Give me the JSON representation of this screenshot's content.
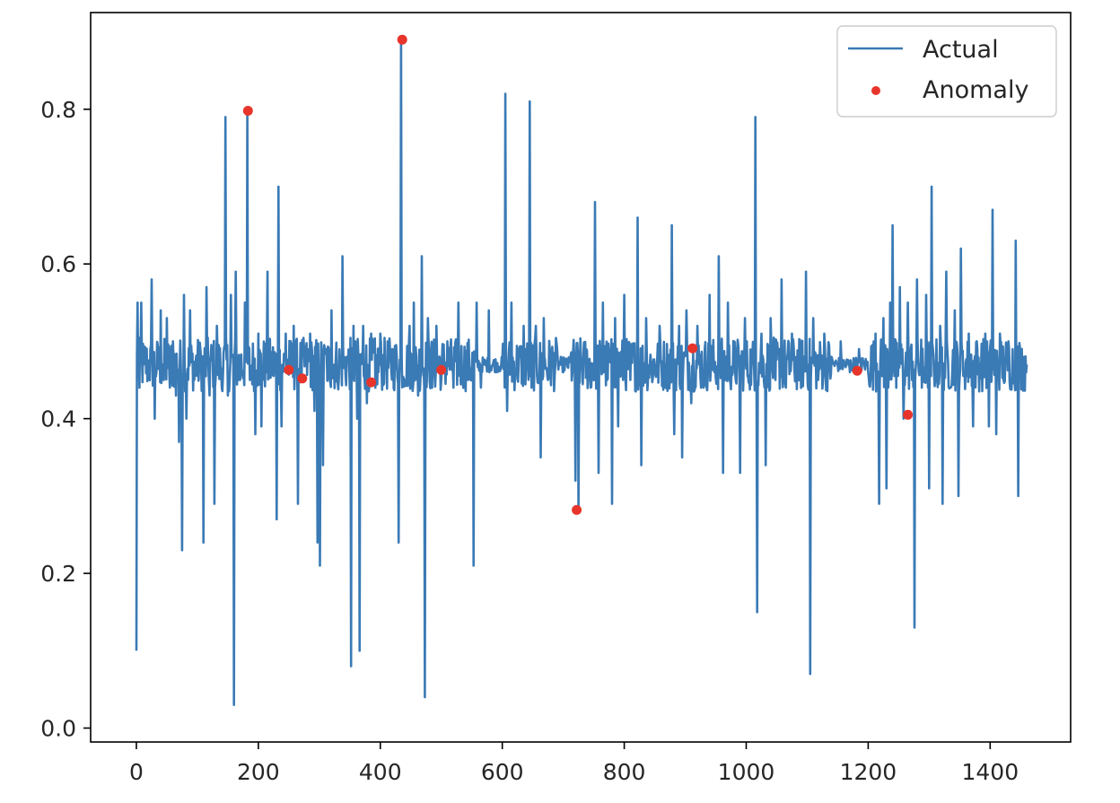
{
  "chart_data": {
    "type": "line",
    "title": "",
    "xlabel": "",
    "ylabel": "",
    "xlim": [
      -75,
      1532
    ],
    "ylim": [
      -0.018,
      0.925
    ],
    "xticks": [
      0,
      200,
      400,
      600,
      800,
      1000,
      1200,
      1400
    ],
    "yticks": [
      0.0,
      0.2,
      0.4,
      0.6,
      0.8
    ],
    "xtick_labels": [
      "0",
      "200",
      "400",
      "600",
      "800",
      "1000",
      "1200",
      "1400"
    ],
    "ytick_labels": [
      "0.0",
      "0.2",
      "0.4",
      "0.6",
      "0.8"
    ],
    "grid": false,
    "legend_position": "top-right",
    "colors": {
      "actual": "#3a7ab5",
      "anomaly": "#e8352b",
      "axis": "#000000"
    },
    "series": [
      {
        "name": "Actual",
        "kind": "line",
        "x_start": 0,
        "x_step": 1,
        "baseline": 0.47,
        "spikes": [
          [
            0,
            0.1
          ],
          [
            2,
            0.55
          ],
          [
            5,
            0.44
          ],
          [
            8,
            0.55
          ],
          [
            12,
            0.47
          ],
          [
            20,
            0.46
          ],
          [
            25,
            0.58
          ],
          [
            30,
            0.4
          ],
          [
            40,
            0.54
          ],
          [
            45,
            0.45
          ],
          [
            50,
            0.53
          ],
          [
            55,
            0.44
          ],
          [
            60,
            0.5
          ],
          [
            65,
            0.43
          ],
          [
            70,
            0.37
          ],
          [
            75,
            0.23
          ],
          [
            78,
            0.56
          ],
          [
            82,
            0.4
          ],
          [
            88,
            0.54
          ],
          [
            95,
            0.45
          ],
          [
            105,
            0.49
          ],
          [
            110,
            0.24
          ],
          [
            115,
            0.57
          ],
          [
            120,
            0.43
          ],
          [
            128,
            0.29
          ],
          [
            132,
            0.52
          ],
          [
            140,
            0.44
          ],
          [
            146,
            0.79
          ],
          [
            150,
            0.43
          ],
          [
            155,
            0.56
          ],
          [
            160,
            0.03
          ],
          [
            163,
            0.59
          ],
          [
            170,
            0.45
          ],
          [
            178,
            0.55
          ],
          [
            182,
            0.8
          ],
          [
            186,
            0.45
          ],
          [
            195,
            0.38
          ],
          [
            200,
            0.51
          ],
          [
            205,
            0.39
          ],
          [
            215,
            0.59
          ],
          [
            222,
            0.46
          ],
          [
            230,
            0.27
          ],
          [
            233,
            0.7
          ],
          [
            238,
            0.39
          ],
          [
            245,
            0.51
          ],
          [
            252,
            0.46
          ],
          [
            258,
            0.52
          ],
          [
            265,
            0.29
          ],
          [
            270,
            0.45
          ],
          [
            278,
            0.49
          ],
          [
            285,
            0.51
          ],
          [
            292,
            0.41
          ],
          [
            297,
            0.24
          ],
          [
            301,
            0.21
          ],
          [
            306,
            0.34
          ],
          [
            312,
            0.49
          ],
          [
            320,
            0.54
          ],
          [
            330,
            0.45
          ],
          [
            338,
            0.61
          ],
          [
            345,
            0.48
          ],
          [
            352,
            0.08
          ],
          [
            356,
            0.52
          ],
          [
            362,
            0.4
          ],
          [
            366,
            0.1
          ],
          [
            372,
            0.52
          ],
          [
            378,
            0.42
          ],
          [
            385,
            0.51
          ],
          [
            392,
            0.44
          ],
          [
            400,
            0.51
          ],
          [
            410,
            0.47
          ],
          [
            420,
            0.49
          ],
          [
            430,
            0.24
          ],
          [
            434,
            0.89
          ],
          [
            440,
            0.45
          ],
          [
            448,
            0.52
          ],
          [
            455,
            0.55
          ],
          [
            462,
            0.43
          ],
          [
            468,
            0.61
          ],
          [
            473,
            0.04
          ],
          [
            478,
            0.53
          ],
          [
            485,
            0.44
          ],
          [
            492,
            0.52
          ],
          [
            500,
            0.45
          ],
          [
            510,
            0.5
          ],
          [
            520,
            0.44
          ],
          [
            528,
            0.55
          ],
          [
            535,
            0.46
          ],
          [
            553,
            0.21
          ],
          [
            558,
            0.55
          ],
          [
            565,
            0.44
          ],
          [
            578,
            0.54
          ],
          [
            590,
            0.46
          ],
          [
            605,
            0.82
          ],
          [
            608,
            0.41
          ],
          [
            615,
            0.55
          ],
          [
            622,
            0.46
          ],
          [
            635,
            0.52
          ],
          [
            645,
            0.81
          ],
          [
            648,
            0.44
          ],
          [
            655,
            0.52
          ],
          [
            663,
            0.35
          ],
          [
            668,
            0.53
          ],
          [
            675,
            0.45
          ],
          [
            690,
            0.49
          ],
          [
            700,
            0.46
          ],
          [
            712,
            0.48
          ],
          [
            720,
            0.32
          ],
          [
            725,
            0.28
          ],
          [
            735,
            0.49
          ],
          [
            745,
            0.44
          ],
          [
            752,
            0.68
          ],
          [
            758,
            0.33
          ],
          [
            765,
            0.55
          ],
          [
            772,
            0.45
          ],
          [
            780,
            0.29
          ],
          [
            785,
            0.53
          ],
          [
            790,
            0.39
          ],
          [
            800,
            0.56
          ],
          [
            810,
            0.45
          ],
          [
            822,
            0.66
          ],
          [
            828,
            0.34
          ],
          [
            836,
            0.53
          ],
          [
            845,
            0.46
          ],
          [
            858,
            0.52
          ],
          [
            868,
            0.47
          ],
          [
            878,
            0.65
          ],
          [
            882,
            0.38
          ],
          [
            890,
            0.52
          ],
          [
            895,
            0.35
          ],
          [
            902,
            0.54
          ],
          [
            910,
            0.42
          ],
          [
            920,
            0.52
          ],
          [
            930,
            0.44
          ],
          [
            940,
            0.56
          ],
          [
            948,
            0.46
          ],
          [
            955,
            0.61
          ],
          [
            962,
            0.33
          ],
          [
            970,
            0.55
          ],
          [
            978,
            0.46
          ],
          [
            990,
            0.33
          ],
          [
            998,
            0.53
          ],
          [
            1005,
            0.45
          ],
          [
            1015,
            0.79
          ],
          [
            1018,
            0.15
          ],
          [
            1025,
            0.51
          ],
          [
            1032,
            0.34
          ],
          [
            1040,
            0.53
          ],
          [
            1048,
            0.45
          ],
          [
            1058,
            0.58
          ],
          [
            1065,
            0.44
          ],
          [
            1075,
            0.51
          ],
          [
            1085,
            0.47
          ],
          [
            1098,
            0.59
          ],
          [
            1105,
            0.07
          ],
          [
            1110,
            0.53
          ],
          [
            1118,
            0.45
          ],
          [
            1128,
            0.51
          ],
          [
            1140,
            0.48
          ],
          [
            1155,
            0.5
          ],
          [
            1170,
            0.46
          ],
          [
            1185,
            0.49
          ],
          [
            1200,
            0.46
          ],
          [
            1212,
            0.51
          ],
          [
            1218,
            0.29
          ],
          [
            1225,
            0.53
          ],
          [
            1230,
            0.31
          ],
          [
            1236,
            0.55
          ],
          [
            1240,
            0.65
          ],
          [
            1246,
            0.44
          ],
          [
            1252,
            0.57
          ],
          [
            1258,
            0.4
          ],
          [
            1265,
            0.55
          ],
          [
            1272,
            0.45
          ],
          [
            1276,
            0.13
          ],
          [
            1280,
            0.58
          ],
          [
            1288,
            0.44
          ],
          [
            1295,
            0.56
          ],
          [
            1300,
            0.31
          ],
          [
            1304,
            0.7
          ],
          [
            1310,
            0.45
          ],
          [
            1318,
            0.52
          ],
          [
            1322,
            0.29
          ],
          [
            1328,
            0.59
          ],
          [
            1335,
            0.44
          ],
          [
            1342,
            0.54
          ],
          [
            1348,
            0.3
          ],
          [
            1352,
            0.62
          ],
          [
            1358,
            0.46
          ],
          [
            1365,
            0.51
          ],
          [
            1372,
            0.39
          ],
          [
            1378,
            0.5
          ],
          [
            1385,
            0.46
          ],
          [
            1392,
            0.51
          ],
          [
            1398,
            0.39
          ],
          [
            1404,
            0.67
          ],
          [
            1410,
            0.38
          ],
          [
            1416,
            0.51
          ],
          [
            1422,
            0.45
          ],
          [
            1430,
            0.5
          ],
          [
            1436,
            0.46
          ],
          [
            1442,
            0.63
          ],
          [
            1446,
            0.3
          ],
          [
            1450,
            0.49
          ],
          [
            1456,
            0.47
          ],
          [
            1460,
            0.47
          ]
        ]
      },
      {
        "name": "Anomaly",
        "kind": "scatter",
        "points": [
          [
            183,
            0.798
          ],
          [
            250,
            0.463
          ],
          [
            272,
            0.452
          ],
          [
            385,
            0.447
          ],
          [
            436,
            0.89
          ],
          [
            500,
            0.463
          ],
          [
            722,
            0.282
          ],
          [
            912,
            0.491
          ],
          [
            1182,
            0.462
          ],
          [
            1265,
            0.405
          ]
        ]
      }
    ]
  }
}
